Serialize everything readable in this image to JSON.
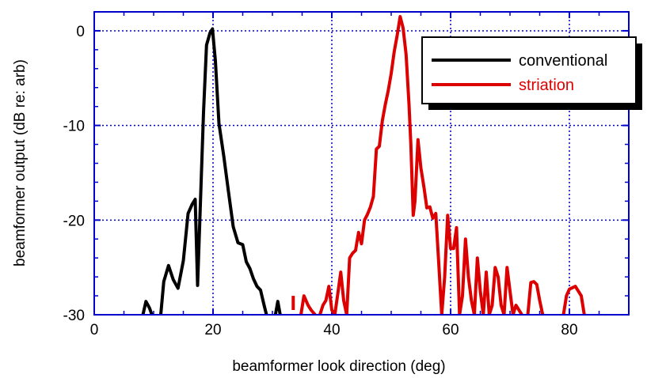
{
  "chart_data": {
    "type": "line",
    "xlabel": "beamformer look direction (deg)",
    "ylabel": "beamformer output (dB re: arb)",
    "xlim": [
      0,
      90
    ],
    "ylim": [
      -30,
      2
    ],
    "x_ticks": [
      0,
      20,
      40,
      60,
      80
    ],
    "y_ticks": [
      0,
      -10,
      -20,
      -30
    ],
    "grid": "dotted at major ticks",
    "legend_position": "top-right",
    "colors": {
      "frame": "#0000cc",
      "grid": "#0000cc",
      "conventional": "#000000",
      "striation": "#dd0000"
    },
    "series": [
      {
        "name": "conventional",
        "segments": [
          [
            [
              8.2,
              -30.0
            ],
            [
              8.7,
              -28.6
            ],
            [
              9.3,
              -29.3
            ],
            [
              9.7,
              -30.0
            ]
          ],
          [
            [
              11.2,
              -30.0
            ],
            [
              11.7,
              -26.5
            ],
            [
              12.5,
              -24.8
            ],
            [
              13.3,
              -26.3
            ],
            [
              14.1,
              -27.2
            ],
            [
              15.0,
              -24.3
            ],
            [
              15.8,
              -19.3
            ],
            [
              16.5,
              -18.3
            ],
            [
              17.0,
              -17.8
            ],
            [
              17.4,
              -26.9
            ],
            [
              17.8,
              -19.6
            ],
            [
              18.4,
              -8.6
            ],
            [
              18.9,
              -1.5
            ],
            [
              19.5,
              -0.2
            ],
            [
              19.9,
              0.2
            ],
            [
              20.4,
              -3.2
            ],
            [
              21.0,
              -9.8
            ],
            [
              21.8,
              -13.2
            ],
            [
              22.6,
              -17.0
            ],
            [
              23.4,
              -20.7
            ],
            [
              24.2,
              -22.4
            ],
            [
              25.0,
              -22.6
            ],
            [
              25.6,
              -24.4
            ],
            [
              26.2,
              -25.1
            ],
            [
              26.8,
              -26.2
            ],
            [
              27.4,
              -27.0
            ],
            [
              28.0,
              -27.4
            ],
            [
              28.6,
              -29.0
            ],
            [
              29.0,
              -30.0
            ]
          ],
          [
            [
              30.5,
              -30.0
            ],
            [
              30.9,
              -28.6
            ],
            [
              31.3,
              -30.0
            ]
          ]
        ]
      },
      {
        "name": "striation",
        "segments": [
          [
            [
              33.5,
              -28.0
            ],
            [
              33.5,
              -29.5
            ]
          ],
          [
            [
              34.8,
              -30.0
            ],
            [
              35.3,
              -28.0
            ],
            [
              36.0,
              -29.0
            ],
            [
              36.5,
              -29.5
            ],
            [
              37.2,
              -30.0
            ]
          ],
          [
            [
              38.0,
              -30.0
            ],
            [
              38.5,
              -29.0
            ],
            [
              39.0,
              -28.5
            ],
            [
              39.5,
              -27.0
            ],
            [
              40.0,
              -29.5
            ],
            [
              40.5,
              -30.0
            ],
            [
              41.0,
              -27.8
            ],
            [
              41.5,
              -25.5
            ],
            [
              42.0,
              -28.5
            ],
            [
              42.5,
              -30.0
            ],
            [
              43.0,
              -24.0
            ],
            [
              43.5,
              -23.5
            ],
            [
              44.0,
              -23.2
            ],
            [
              44.5,
              -21.3
            ],
            [
              45.0,
              -22.5
            ],
            [
              45.5,
              -20.0
            ],
            [
              46.0,
              -19.4
            ],
            [
              46.5,
              -18.6
            ],
            [
              47.0,
              -17.5
            ],
            [
              47.5,
              -12.5
            ],
            [
              48.0,
              -12.2
            ],
            [
              48.5,
              -9.5
            ],
            [
              49.0,
              -7.8
            ],
            [
              49.5,
              -6.3
            ],
            [
              50.0,
              -4.5
            ],
            [
              50.5,
              -2.2
            ],
            [
              51.0,
              -0.5
            ],
            [
              51.5,
              1.5
            ],
            [
              52.0,
              0.3
            ],
            [
              52.5,
              -2.5
            ],
            [
              53.0,
              -7.8
            ],
            [
              53.3,
              -12.0
            ],
            [
              53.7,
              -19.5
            ],
            [
              54.0,
              -18.0
            ],
            [
              54.5,
              -11.5
            ],
            [
              55.0,
              -14.5
            ],
            [
              55.5,
              -16.5
            ],
            [
              56.0,
              -18.7
            ],
            [
              56.5,
              -18.6
            ],
            [
              57.0,
              -19.8
            ],
            [
              57.5,
              -19.3
            ],
            [
              58.0,
              -24.5
            ],
            [
              58.5,
              -30.0
            ],
            [
              59.0,
              -26.0
            ],
            [
              59.5,
              -19.5
            ],
            [
              60.0,
              -23.0
            ],
            [
              60.5,
              -23.0
            ],
            [
              61.0,
              -20.8
            ],
            [
              61.5,
              -30.0
            ],
            [
              62.0,
              -28.0
            ],
            [
              62.5,
              -22.0
            ],
            [
              63.0,
              -26.0
            ],
            [
              63.5,
              -28.5
            ],
            [
              64.0,
              -30.0
            ],
            [
              64.5,
              -24.0
            ],
            [
              65.0,
              -27.5
            ],
            [
              65.5,
              -30.0
            ],
            [
              66.0,
              -25.5
            ],
            [
              66.5,
              -30.0
            ],
            [
              67.0,
              -29.0
            ],
            [
              67.5,
              -25.0
            ],
            [
              68.0,
              -26.0
            ],
            [
              68.5,
              -29.0
            ],
            [
              69.0,
              -30.0
            ],
            [
              69.5,
              -25.0
            ],
            [
              70.0,
              -27.5
            ],
            [
              70.5,
              -30.0
            ],
            [
              71.0,
              -29.0
            ],
            [
              71.5,
              -29.5
            ],
            [
              72.0,
              -30.0
            ]
          ],
          [
            [
              73.0,
              -30.0
            ],
            [
              73.5,
              -26.6
            ],
            [
              74.0,
              -26.5
            ],
            [
              74.5,
              -26.8
            ],
            [
              75.0,
              -28.5
            ],
            [
              75.5,
              -30.0
            ]
          ],
          [
            [
              79.0,
              -30.0
            ],
            [
              79.5,
              -28.0
            ],
            [
              80.0,
              -27.3
            ],
            [
              81.0,
              -27.0
            ],
            [
              82.0,
              -28.0
            ],
            [
              82.5,
              -30.0
            ]
          ]
        ]
      }
    ]
  }
}
